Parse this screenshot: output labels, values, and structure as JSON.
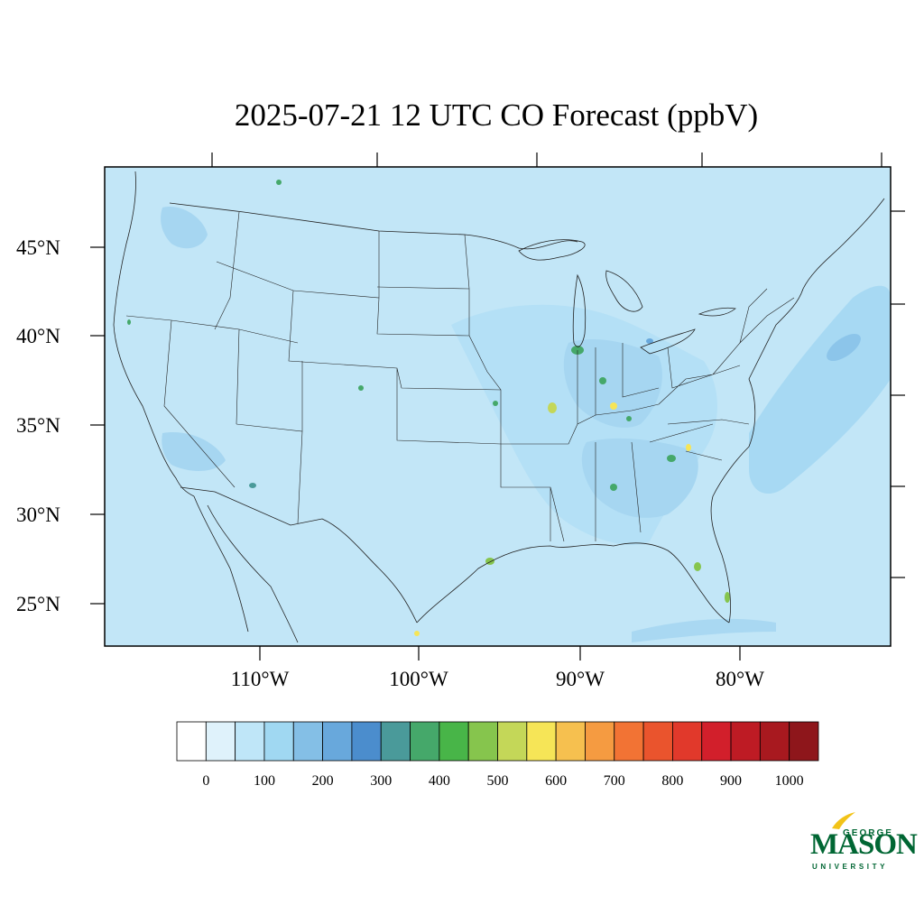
{
  "title": "2025-07-21 12 UTC CO Forecast (ppbV)",
  "map": {
    "lat_labels": [
      "45°N",
      "40°N",
      "35°N",
      "30°N",
      "25°N"
    ],
    "lon_labels": [
      "110°W",
      "100°W",
      "90°W",
      "80°W"
    ],
    "background_color": "#c2e6f7",
    "border_color": "#222222"
  },
  "colorbar": {
    "colors": [
      "#ffffff",
      "#dff2fb",
      "#bfe6f8",
      "#a0d8f2",
      "#84bfe6",
      "#68a8dc",
      "#4b8dcd",
      "#4a9a9a",
      "#45a86a",
      "#48b548",
      "#86c54d",
      "#c4d758",
      "#f6e557",
      "#f6c04f",
      "#f59b41",
      "#f27334",
      "#ea542d",
      "#e1392b",
      "#d21f2b",
      "#be1b24",
      "#a8191f",
      "#8e161b"
    ],
    "labels": [
      "0",
      "100",
      "200",
      "300",
      "400",
      "500",
      "600",
      "700",
      "800",
      "900",
      "1000"
    ]
  },
  "logo": {
    "line1": "GEORGE",
    "line2": "MASON",
    "line3": "UNIVERSITY",
    "brand_color": "#006633",
    "accent_color": "#f2c318"
  }
}
